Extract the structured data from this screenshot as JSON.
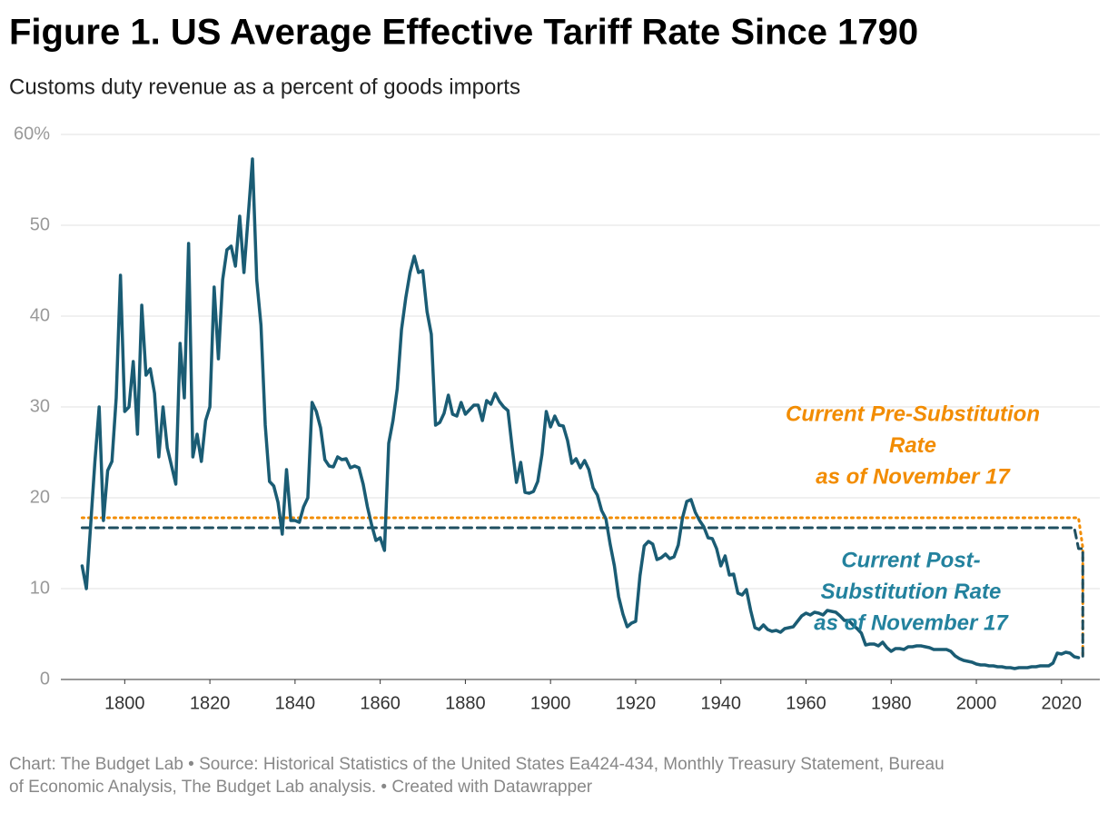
{
  "chart_data": {
    "type": "line",
    "title": "Figure 1. US Average Effective Tariff Rate Since 1790",
    "subtitle": "Customs duty revenue as a percent of goods imports",
    "footer": [
      "Chart: The Budget Lab • Source: Historical Statistics of the United States Ea424-434, Monthly Treasury Statement, Bureau",
      "of Economic Analysis, The Budget Lab analysis. • Created with Datawrapper"
    ],
    "xlim": [
      1785,
      2029
    ],
    "xticks": [
      1800,
      1820,
      1840,
      1860,
      1880,
      1900,
      1920,
      1940,
      1960,
      1980,
      2000,
      2020
    ],
    "ylim": [
      0,
      60
    ],
    "yticks": [
      0,
      10,
      20,
      30,
      40,
      50,
      {
        "value": 60,
        "label": "60%"
      }
    ],
    "grid": true,
    "series": [
      {
        "color": "#1a5c74",
        "style": "solid",
        "x": [
          1790,
          1791,
          1792,
          1793,
          1794,
          1795,
          1796,
          1797,
          1798,
          1799,
          1800,
          1801,
          1802,
          1803,
          1804,
          1805,
          1806,
          1807,
          1808,
          1809,
          1810,
          1811,
          1812,
          1813,
          1814,
          1815,
          1816,
          1817,
          1818,
          1819,
          1820,
          1821,
          1822,
          1823,
          1824,
          1825,
          1826,
          1827,
          1828,
          1829,
          1830,
          1831,
          1832,
          1833,
          1834,
          1835,
          1836,
          1837,
          1838,
          1839,
          1840,
          1841,
          1842,
          1843,
          1844,
          1845,
          1846,
          1847,
          1848,
          1849,
          1850,
          1851,
          1852,
          1853,
          1854,
          1855,
          1856,
          1857,
          1858,
          1859,
          1860,
          1861,
          1862,
          1863,
          1864,
          1865,
          1866,
          1867,
          1868,
          1869,
          1870,
          1871,
          1872,
          1873,
          1874,
          1875,
          1876,
          1877,
          1878,
          1879,
          1880,
          1881,
          1882,
          1883,
          1884,
          1885,
          1886,
          1887,
          1888,
          1889,
          1890,
          1891,
          1892,
          1893,
          1894,
          1895,
          1896,
          1897,
          1898,
          1899,
          1900,
          1901,
          1902,
          1903,
          1904,
          1905,
          1906,
          1907,
          1908,
          1909,
          1910,
          1911,
          1912,
          1913,
          1914,
          1915,
          1916,
          1917,
          1918,
          1919,
          1920,
          1921,
          1922,
          1923,
          1924,
          1925,
          1926,
          1927,
          1928,
          1929,
          1930,
          1931,
          1932,
          1933,
          1934,
          1935,
          1936,
          1937,
          1938,
          1939,
          1940,
          1941,
          1942,
          1943,
          1944,
          1945,
          1946,
          1947,
          1948,
          1949,
          1950,
          1951,
          1952,
          1953,
          1954,
          1955,
          1956,
          1957,
          1958,
          1959,
          1960,
          1961,
          1962,
          1963,
          1964,
          1965,
          1966,
          1967,
          1968,
          1969,
          1970,
          1971,
          1972,
          1973,
          1974,
          1975,
          1976,
          1977,
          1978,
          1979,
          1980,
          1981,
          1982,
          1983,
          1984,
          1985,
          1986,
          1987,
          1988,
          1989,
          1990,
          1991,
          1992,
          1993,
          1994,
          1995,
          1996,
          1997,
          1998,
          1999,
          2000,
          2001,
          2002,
          2003,
          2004,
          2005,
          2006,
          2007,
          2008,
          2009,
          2010,
          2011,
          2012,
          2013,
          2014,
          2015,
          2016,
          2017,
          2018,
          2019,
          2020,
          2021,
          2022,
          2023,
          2024
        ],
        "values": [
          12.5,
          10,
          17,
          24,
          30,
          17.5,
          23,
          24,
          31,
          44.5,
          29.5,
          30,
          35,
          27,
          41.2,
          33.5,
          34.2,
          31.5,
          24.5,
          30,
          25.5,
          23.5,
          21.5,
          37,
          31,
          48,
          24.5,
          27,
          24,
          28.5,
          30,
          43.2,
          35.3,
          44,
          47.3,
          47.7,
          45.5,
          51,
          44.8,
          51,
          57.3,
          44,
          39,
          28,
          21.8,
          21.3,
          19.5,
          16,
          23.1,
          17.5,
          17.5,
          17.3,
          19,
          20,
          30.5,
          29.5,
          27.7,
          24.2,
          23.5,
          23.4,
          24.5,
          24.2,
          24.3,
          23.3,
          23.5,
          23.3,
          21.5,
          19,
          17,
          15.3,
          15.6,
          14.2,
          26,
          28.5,
          32,
          38.5,
          42,
          44.8,
          46.6,
          44.8,
          45,
          40.5,
          38,
          28,
          28.3,
          29.3,
          31.3,
          29.2,
          29,
          30.5,
          29.2,
          29.7,
          30.2,
          30.2,
          28.5,
          30.7,
          30.3,
          31.5,
          30.6,
          30,
          29.6,
          25.5,
          21.7,
          23.9,
          20.6,
          20.5,
          20.7,
          21.8,
          24.8,
          29.5,
          27.8,
          29,
          28,
          27.9,
          26.3,
          23.8,
          24.3,
          23.3,
          24.1,
          23.1,
          21.1,
          20.3,
          18.6,
          17.7,
          14.9,
          12.5,
          9.1,
          7.2,
          5.8,
          6.2,
          6.4,
          11.4,
          14.7,
          15.2,
          14.9,
          13.2,
          13.4,
          13.8,
          13.3,
          13.5,
          14.8,
          17.8,
          19.6,
          19.8,
          18.4,
          17.5,
          16.8,
          15.6,
          15.5,
          14.4,
          12.5,
          13.6,
          11.5,
          11.6,
          9.5,
          9.3,
          9.9,
          7.6,
          5.7,
          5.5,
          6,
          5.5,
          5.3,
          5.4,
          5.2,
          5.6,
          5.7,
          5.8,
          6.4,
          7,
          7.3,
          7.1,
          7.4,
          7.3,
          7.1,
          7.6,
          7.5,
          7.4,
          7,
          6.5,
          6.5,
          6,
          5.6,
          5.1,
          3.8,
          3.9,
          3.9,
          3.7,
          4.1,
          3.5,
          3.1,
          3.4,
          3.4,
          3.3,
          3.6,
          3.6,
          3.7,
          3.7,
          3.6,
          3.5,
          3.3,
          3.3,
          3.3,
          3.3,
          3.1,
          2.6,
          2.3,
          2.1,
          2,
          1.9,
          1.7,
          1.6,
          1.6,
          1.5,
          1.5,
          1.4,
          1.4,
          1.3,
          1.3,
          1.2,
          1.3,
          1.3,
          1.3,
          1.4,
          1.4,
          1.5,
          1.5,
          1.5,
          1.8,
          2.9,
          2.8,
          3,
          2.9,
          2.5,
          2.4
        ]
      },
      {
        "color": "#f28c00",
        "style": "dotted",
        "x": [
          1790,
          2024,
          2025,
          2025
        ],
        "values": [
          17.8,
          17.8,
          14.5,
          2.4
        ],
        "annotation": [
          "Current Pre-Substitution",
          "Rate",
          "as of November 17"
        ]
      },
      {
        "color": "#1f4f60",
        "style": "dashed",
        "x": [
          1790,
          2023,
          2024,
          2025,
          2025
        ],
        "values": [
          16.7,
          16.7,
          14.4,
          14.4,
          2.4
        ],
        "annotation": [
          "Current Post-",
          "Substitution Rate",
          "as of November 17"
        ],
        "annotation_color": "#23829e"
      }
    ]
  }
}
